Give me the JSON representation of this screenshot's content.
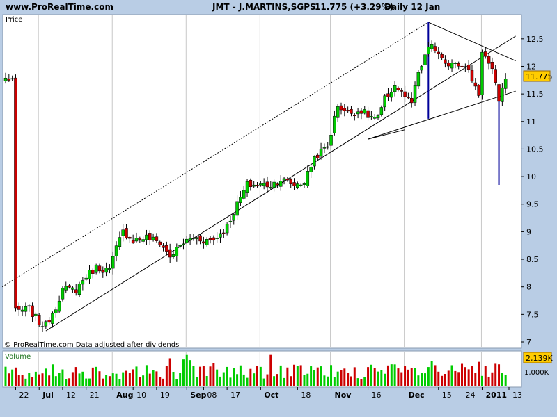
{
  "header": {
    "site": "www.ProRealTime.com",
    "symbol": "JMT - J.MARTINS,SGPS",
    "quote": "11.775 (+3.29%)",
    "period": "Daily 12 Jan"
  },
  "price_panel": {
    "label": "Price",
    "footer": "© ProRealTime.com Data adjusted after dividends",
    "current_price_tag": "11.775",
    "last_close": 11.775
  },
  "volume_panel": {
    "label": "Volume",
    "current_volume_tag": "2,139K",
    "scale_label": "1,000K"
  },
  "colors": {
    "background": "#b9cde5",
    "panel": "#ffffff",
    "up_candle": "#00cc00",
    "down_candle": "#cc0000",
    "trendline": "#000000",
    "marker_line": "#000099",
    "price_tag": "#ffcc00",
    "volume_tag": "#ffcc00"
  },
  "chart_data": [
    {
      "type": "candlestick",
      "title": "JMT - J.MARTINS,SGPS",
      "ylabel": "Price",
      "ylim": [
        7.0,
        12.75
      ],
      "yticks": [
        "12.5",
        "12",
        "11.5",
        "11",
        "10.5",
        "10",
        "9.5",
        "9",
        "8.5",
        "8",
        "7.5",
        "7"
      ],
      "yticks_values": [
        12.5,
        12,
        11.5,
        11,
        10.5,
        10,
        9.5,
        9,
        8.5,
        8,
        7.5,
        7
      ],
      "x_labels": [
        "22",
        "Jul",
        "12",
        "21",
        "Aug",
        "10",
        "19",
        "Sep",
        "08",
        "17",
        "Oct",
        "18",
        "Nov",
        "16",
        "Dec",
        "15",
        "24",
        "2011",
        "13"
      ],
      "month_markers": [
        "Jul",
        "Aug",
        "Sep",
        "Oct",
        "Nov",
        "Dec",
        "2011"
      ],
      "grid": "vertical at month starts",
      "trend": [
        [
          "Jun 22",
          7.55
        ],
        [
          "Jun 28",
          7.6
        ],
        [
          "Jul 1",
          7.35
        ],
        [
          "Jul 5",
          7.3
        ],
        [
          "Jul 8",
          7.65
        ],
        [
          "Jul 12",
          7.95
        ],
        [
          "Jul 16",
          7.95
        ],
        [
          "Jul 21",
          8.2
        ],
        [
          "Jul 26",
          8.35
        ],
        [
          "Jul 30",
          8.3
        ],
        [
          "Aug 3",
          8.7
        ],
        [
          "Aug 5",
          9.0
        ],
        [
          "Aug 10",
          8.85
        ],
        [
          "Aug 16",
          8.9
        ],
        [
          "Aug 20",
          8.8
        ],
        [
          "Aug 25",
          8.55
        ],
        [
          "Aug 31",
          8.8
        ],
        [
          "Sep 3",
          8.9
        ],
        [
          "Sep 8",
          8.85
        ],
        [
          "Sep 13",
          8.85
        ],
        [
          "Sep 17",
          9.1
        ],
        [
          "Sep 22",
          9.5
        ],
        [
          "Sep 27",
          9.85
        ],
        [
          "Oct 1",
          9.85
        ],
        [
          "Oct 6",
          9.85
        ],
        [
          "Oct 11",
          9.95
        ],
        [
          "Oct 15",
          9.85
        ],
        [
          "Oct 20",
          9.9
        ],
        [
          "Oct 25",
          10.35
        ],
        [
          "Oct 29",
          10.55
        ],
        [
          "Nov 3",
          11.3
        ],
        [
          "Nov 8",
          11.15
        ],
        [
          "Nov 12",
          11.2
        ],
        [
          "Nov 16",
          11.1
        ],
        [
          "Nov 19",
          11.05
        ],
        [
          "Nov 23",
          11.4
        ],
        [
          "Nov 26",
          11.65
        ],
        [
          "Dec 1",
          11.45
        ],
        [
          "Dec 3",
          11.3
        ],
        [
          "Dec 6",
          11.65
        ],
        [
          "Dec 9",
          12.2
        ],
        [
          "Dec 13",
          12.4
        ],
        [
          "Dec 17",
          12.0
        ],
        [
          "Dec 21",
          12.1
        ],
        [
          "Dec 24",
          12.05
        ],
        [
          "Dec 28",
          11.9
        ],
        [
          "Dec 31",
          11.5
        ],
        [
          "Jan 3",
          12.3
        ],
        [
          "Jan 6",
          11.9
        ],
        [
          "Jan 9",
          11.4
        ],
        [
          "Jan 12",
          11.775
        ]
      ],
      "annotations": [
        "support trendline Jul–Jan",
        "dotted parallel channel line",
        "symmetrical triangle Nov–Jan",
        "vertical spike lines Dec 9 and Jan 10"
      ]
    },
    {
      "type": "bar",
      "title": "Volume",
      "yticks": [
        "1,000K"
      ],
      "latest_value": "2,139K"
    }
  ]
}
